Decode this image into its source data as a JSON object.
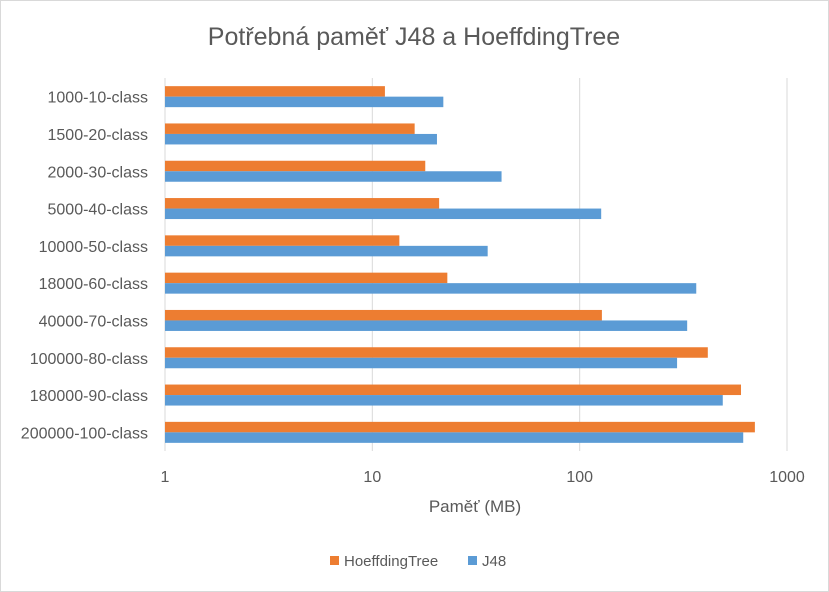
{
  "chart_data": {
    "type": "bar",
    "orientation": "horizontal",
    "title": "Potřebná paměť J48 a HoeffdingTree",
    "xlabel": "Paměť (MB)",
    "ylabel": "",
    "x_scale": "log",
    "xlim": [
      1,
      1000
    ],
    "x_ticks": [
      "1",
      "10",
      "100",
      "1000"
    ],
    "grid": true,
    "legend_position": "bottom",
    "categories": [
      "1000-10-class",
      "1500-20-class",
      "2000-30-class",
      "5000-40-class",
      "10000-50-class",
      "18000-60-class",
      "40000-70-class",
      "100000-80-class",
      "180000-90-class",
      "200000-100-class"
    ],
    "series": [
      {
        "name": "HoeffdingTree",
        "color": "#ED7D31",
        "values": [
          11.5,
          16,
          18,
          21,
          13.5,
          23,
          128,
          415,
          600,
          700
        ]
      },
      {
        "name": "J48",
        "color": "#5B9BD5",
        "values": [
          22,
          20.5,
          42,
          127,
          36,
          365,
          330,
          295,
          490,
          615
        ]
      }
    ]
  }
}
